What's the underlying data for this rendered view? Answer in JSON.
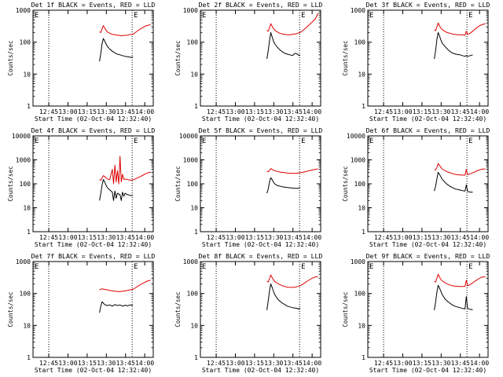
{
  "figure": {
    "xlabel": "Start Time (02-Oct-04 12:32:40)",
    "ylabel": "Counts/sec",
    "x_ticks": [
      "12:45",
      "13:00",
      "13:15",
      "13:30",
      "13:45",
      "14:00"
    ],
    "x_tick_minutes": [
      12.33,
      27.33,
      42.33,
      57.33,
      72.33,
      87.33
    ],
    "dotted_markers_minutes": [
      0,
      12.33,
      77.5
    ],
    "corner_marks": [
      "E",
      "E"
    ],
    "colors": {
      "events": "#000000",
      "lld": "#dd0000",
      "axis": "#000000",
      "background": "#ffffff"
    }
  },
  "chart_data": [
    {
      "type": "line",
      "title": "Det 1f BLACK = Events, RED = LLD",
      "xlabel": "Start Time (02-Oct-04 12:32:40)",
      "ylabel": "Counts/sec",
      "xlim_minutes": [
        0,
        94
      ],
      "ylim": [
        1,
        1000
      ],
      "yscale": "log",
      "y_ticks": [
        "1",
        "10",
        "100",
        "1000"
      ],
      "series": [
        {
          "color": "#000000",
          "x": [
            52,
            53,
            54,
            55,
            56,
            57,
            58,
            60,
            62,
            64,
            66,
            68,
            70,
            72,
            74,
            76,
            77,
            78
          ],
          "y": [
            25,
            45,
            90,
            130,
            110,
            90,
            75,
            60,
            52,
            46,
            42,
            40,
            38,
            36,
            35,
            34,
            33,
            35
          ]
        },
        {
          "color": "#dd0000",
          "x": [
            52,
            53,
            54,
            55,
            56,
            57,
            58,
            60,
            62,
            64,
            66,
            68,
            70,
            72,
            74,
            76,
            78,
            80,
            82,
            84,
            86,
            88,
            90,
            92
          ],
          "y": [
            210,
            200,
            260,
            330,
            280,
            240,
            210,
            190,
            175,
            170,
            165,
            160,
            160,
            162,
            165,
            175,
            175,
            200,
            230,
            260,
            290,
            320,
            340,
            350
          ]
        }
      ]
    },
    {
      "type": "line",
      "title": "Det 2f BLACK = Events, RED = LLD",
      "xlabel": "Start Time (02-Oct-04 12:32:40)",
      "ylabel": "Counts/sec",
      "xlim_minutes": [
        0,
        94
      ],
      "ylim": [
        1,
        1000
      ],
      "yscale": "log",
      "y_ticks": [
        "1",
        "10",
        "100",
        "1000"
      ],
      "series": [
        {
          "color": "#000000",
          "x": [
            52,
            53,
            54,
            55,
            56,
            57,
            58,
            60,
            62,
            64,
            66,
            68,
            70,
            72,
            74,
            76,
            77,
            78
          ],
          "y": [
            30,
            55,
            110,
            200,
            150,
            110,
            90,
            70,
            58,
            50,
            45,
            42,
            40,
            38,
            45,
            42,
            38,
            40
          ]
        },
        {
          "color": "#dd0000",
          "x": [
            52,
            53,
            54,
            55,
            56,
            57,
            58,
            60,
            62,
            64,
            66,
            68,
            70,
            72,
            74,
            76,
            78,
            80,
            82,
            84,
            86,
            88,
            90,
            92
          ],
          "y": [
            230,
            220,
            280,
            380,
            320,
            270,
            240,
            210,
            190,
            180,
            175,
            170,
            170,
            175,
            180,
            190,
            200,
            230,
            270,
            320,
            380,
            450,
            550,
            800
          ]
        }
      ]
    },
    {
      "type": "line",
      "title": "Det 3f BLACK = Events, RED = LLD",
      "xlabel": "Start Time (02-Oct-04 12:32:40)",
      "ylabel": "Counts/sec",
      "xlim_minutes": [
        0,
        94
      ],
      "ylim": [
        1,
        1000
      ],
      "yscale": "log",
      "y_ticks": [
        "1",
        "10",
        "100",
        "1000"
      ],
      "series": [
        {
          "color": "#000000",
          "x": [
            52,
            53,
            54,
            55,
            56,
            57,
            58,
            60,
            62,
            64,
            66,
            68,
            70,
            72,
            74,
            76,
            77,
            78,
            80,
            82
          ],
          "y": [
            30,
            55,
            120,
            200,
            160,
            120,
            95,
            75,
            62,
            52,
            46,
            43,
            41,
            40,
            38,
            36,
            38,
            36,
            38,
            40
          ]
        },
        {
          "color": "#dd0000",
          "x": [
            52,
            53,
            54,
            55,
            56,
            57,
            58,
            60,
            62,
            64,
            66,
            68,
            70,
            72,
            74,
            76,
            77,
            78,
            80,
            82,
            84,
            86,
            88,
            90,
            92
          ],
          "y": [
            240,
            230,
            300,
            400,
            330,
            280,
            250,
            220,
            200,
            190,
            180,
            175,
            170,
            170,
            168,
            165,
            220,
            175,
            190,
            220,
            260,
            300,
            340,
            360,
            380
          ]
        }
      ]
    },
    {
      "type": "line",
      "title": "Det 4f BLACK = Events, RED = LLD",
      "xlabel": "Start Time (02-Oct-04 12:32:40)",
      "ylabel": "Counts/sec",
      "xlim_minutes": [
        0,
        94
      ],
      "ylim": [
        1,
        10000
      ],
      "yscale": "log",
      "y_ticks": [
        "1",
        "10",
        "100",
        "1000",
        "10000"
      ],
      "series": [
        {
          "color": "#000000",
          "x": [
            52,
            53,
            54,
            55,
            56,
            57,
            58,
            60,
            62,
            63,
            64,
            65,
            66,
            68,
            69,
            70,
            71,
            72,
            74,
            76,
            77,
            78
          ],
          "y": [
            20,
            40,
            90,
            150,
            120,
            90,
            70,
            55,
            45,
            20,
            50,
            25,
            40,
            35,
            20,
            45,
            30,
            40,
            35,
            33,
            32,
            35
          ]
        },
        {
          "color": "#dd0000",
          "x": [
            52,
            53,
            54,
            55,
            56,
            57,
            58,
            60,
            62,
            63,
            64,
            65,
            66,
            67,
            68,
            69,
            70,
            71,
            72,
            74,
            76,
            78,
            80,
            82,
            84,
            86,
            88,
            90,
            92
          ],
          "y": [
            150,
            140,
            180,
            220,
            200,
            180,
            160,
            150,
            400,
            100,
            600,
            120,
            350,
            100,
            1400,
            120,
            250,
            150,
            160,
            150,
            140,
            145,
            160,
            180,
            200,
            230,
            260,
            290,
            310
          ]
        }
      ]
    },
    {
      "type": "line",
      "title": "Det 5f BLACK = Events, RED = LLD",
      "xlabel": "Start Time (02-Oct-04 12:32:40)",
      "ylabel": "Counts/sec",
      "xlim_minutes": [
        0,
        94
      ],
      "ylim": [
        1,
        10000
      ],
      "yscale": "log",
      "y_ticks": [
        "1",
        "10",
        "100",
        "1000",
        "10000"
      ],
      "series": [
        {
          "color": "#000000",
          "x": [
            52,
            53,
            54,
            55,
            56,
            57,
            58,
            60,
            62,
            64,
            66,
            68,
            70,
            72,
            74,
            76,
            78
          ],
          "y": [
            40,
            60,
            120,
            180,
            150,
            120,
            100,
            85,
            80,
            75,
            72,
            70,
            68,
            66,
            65,
            64,
            70
          ]
        },
        {
          "color": "#dd0000",
          "x": [
            52,
            53,
            54,
            55,
            56,
            57,
            58,
            60,
            62,
            64,
            66,
            68,
            70,
            72,
            74,
            76,
            78,
            80,
            82,
            84,
            86,
            88,
            90,
            92
          ],
          "y": [
            320,
            320,
            360,
            430,
            400,
            370,
            350,
            330,
            310,
            300,
            290,
            280,
            275,
            270,
            270,
            280,
            290,
            300,
            320,
            340,
            360,
            380,
            400,
            420
          ]
        }
      ]
    },
    {
      "type": "line",
      "title": "Det 6f BLACK = Events, RED = LLD",
      "xlabel": "Start Time (02-Oct-04 12:32:40)",
      "ylabel": "Counts/sec",
      "xlim_minutes": [
        0,
        94
      ],
      "ylim": [
        1,
        10000
      ],
      "yscale": "log",
      "y_ticks": [
        "1",
        "10",
        "100",
        "1000",
        "10000"
      ],
      "series": [
        {
          "color": "#000000",
          "x": [
            52,
            53,
            54,
            55,
            56,
            57,
            58,
            60,
            62,
            64,
            66,
            68,
            70,
            72,
            74,
            76,
            77,
            78,
            80,
            82
          ],
          "y": [
            50,
            80,
            160,
            300,
            250,
            200,
            160,
            120,
            95,
            80,
            70,
            62,
            58,
            55,
            52,
            50,
            90,
            48,
            45,
            45
          ]
        },
        {
          "color": "#dd0000",
          "x": [
            52,
            53,
            54,
            55,
            56,
            57,
            58,
            60,
            62,
            64,
            66,
            68,
            70,
            72,
            74,
            76,
            77,
            78,
            80,
            82,
            84,
            86,
            88,
            90,
            92
          ],
          "y": [
            380,
            380,
            480,
            700,
            600,
            500,
            420,
            360,
            320,
            290,
            270,
            250,
            240,
            235,
            230,
            230,
            400,
            240,
            260,
            290,
            320,
            360,
            390,
            410,
            420
          ]
        }
      ]
    },
    {
      "type": "line",
      "title": "Det 7f BLACK = Events, RED = LLD",
      "xlabel": "Start Time (02-Oct-04 12:32:40)",
      "ylabel": "Counts/sec",
      "xlim_minutes": [
        0,
        94
      ],
      "ylim": [
        1,
        1000
      ],
      "yscale": "log",
      "y_ticks": [
        "1",
        "10",
        "100",
        "1000"
      ],
      "series": [
        {
          "color": "#000000",
          "x": [
            52,
            53,
            54,
            55,
            56,
            58,
            60,
            62,
            64,
            66,
            68,
            70,
            72,
            74,
            76,
            78
          ],
          "y": [
            25,
            40,
            55,
            50,
            45,
            42,
            44,
            40,
            45,
            42,
            44,
            40,
            43,
            41,
            44,
            42
          ]
        },
        {
          "color": "#dd0000",
          "x": [
            52,
            54,
            56,
            58,
            60,
            62,
            64,
            66,
            68,
            70,
            72,
            74,
            76,
            78,
            80,
            82,
            84,
            86,
            88,
            90,
            92
          ],
          "y": [
            130,
            140,
            135,
            130,
            125,
            120,
            118,
            115,
            115,
            118,
            120,
            125,
            130,
            135,
            150,
            170,
            190,
            210,
            230,
            250,
            260
          ]
        }
      ]
    },
    {
      "type": "line",
      "title": "Det 8f BLACK = Events, RED = LLD",
      "xlabel": "Start Time (02-Oct-04 12:32:40)",
      "ylabel": "Counts/sec",
      "xlim_minutes": [
        0,
        94
      ],
      "ylim": [
        1,
        1000
      ],
      "yscale": "log",
      "y_ticks": [
        "1",
        "10",
        "100",
        "1000"
      ],
      "series": [
        {
          "color": "#000000",
          "x": [
            52,
            53,
            54,
            55,
            56,
            57,
            58,
            60,
            62,
            64,
            66,
            68,
            70,
            72,
            74,
            76,
            77,
            78
          ],
          "y": [
            30,
            60,
            120,
            200,
            160,
            120,
            95,
            70,
            58,
            50,
            45,
            40,
            38,
            36,
            35,
            34,
            32,
            35
          ]
        },
        {
          "color": "#dd0000",
          "x": [
            52,
            53,
            54,
            55,
            56,
            57,
            58,
            60,
            62,
            64,
            66,
            68,
            70,
            72,
            74,
            76,
            78,
            80,
            82,
            84,
            86,
            88,
            90,
            92
          ],
          "y": [
            240,
            230,
            290,
            380,
            320,
            270,
            240,
            210,
            190,
            175,
            165,
            158,
            155,
            155,
            158,
            165,
            175,
            195,
            220,
            250,
            280,
            310,
            330,
            340
          ]
        }
      ]
    },
    {
      "type": "line",
      "title": "Det 9f BLACK = Events, RED = LLD",
      "xlabel": "Start Time (02-Oct-04 12:32:40)",
      "ylabel": "Counts/sec",
      "xlim_minutes": [
        0,
        94
      ],
      "ylim": [
        1,
        1000
      ],
      "yscale": "log",
      "y_ticks": [
        "1",
        "10",
        "100",
        "1000"
      ],
      "series": [
        {
          "color": "#000000",
          "x": [
            52,
            53,
            54,
            55,
            56,
            57,
            58,
            60,
            62,
            64,
            66,
            68,
            70,
            72,
            74,
            76,
            77,
            78,
            80,
            82
          ],
          "y": [
            30,
            55,
            110,
            180,
            150,
            120,
            95,
            70,
            58,
            50,
            44,
            40,
            38,
            36,
            34,
            33,
            80,
            34,
            32,
            31
          ]
        },
        {
          "color": "#dd0000",
          "x": [
            52,
            53,
            54,
            55,
            56,
            57,
            58,
            60,
            62,
            64,
            66,
            68,
            70,
            72,
            74,
            76,
            77,
            78,
            80,
            82,
            84,
            86,
            88,
            90,
            92
          ],
          "y": [
            240,
            230,
            300,
            400,
            330,
            280,
            250,
            220,
            200,
            185,
            175,
            170,
            168,
            165,
            165,
            168,
            260,
            175,
            190,
            215,
            245,
            280,
            310,
            330,
            340
          ]
        }
      ]
    }
  ]
}
